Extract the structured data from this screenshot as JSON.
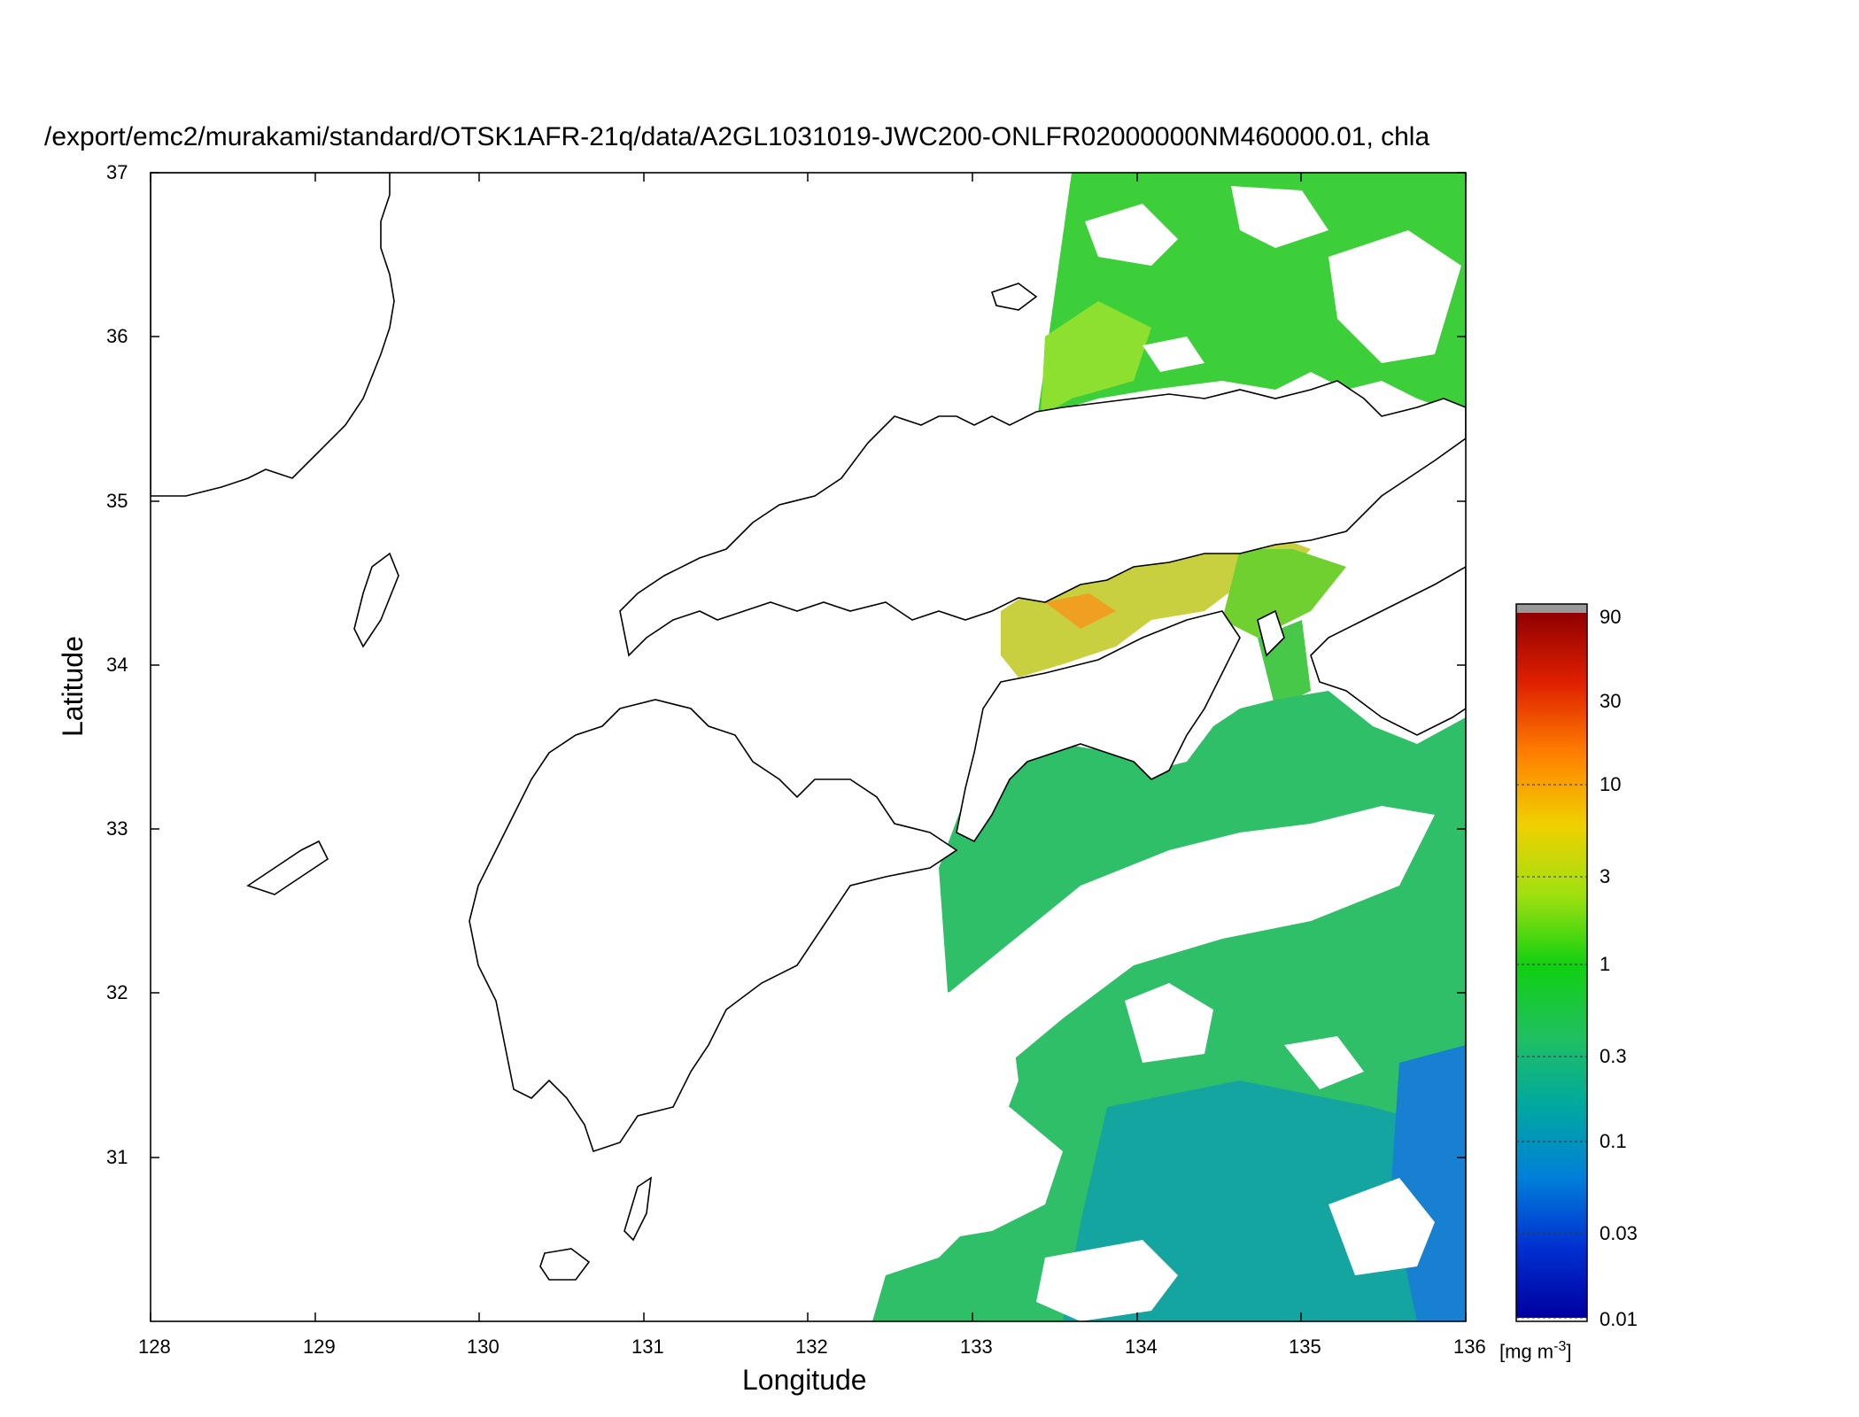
{
  "title": "/export/emc2/murakami/standard/OTSK1AFR-21q/data/A2GL1031019-JWC200-ONLFR02000000NM460000.01, chla",
  "map": {
    "xlabel": "Longitude",
    "ylabel": "Latitude",
    "x_ticks": [
      "128",
      "129",
      "130",
      "131",
      "132",
      "133",
      "134",
      "135",
      "136"
    ],
    "y_ticks": [
      "37",
      "36",
      "35",
      "34",
      "33",
      "32",
      "31"
    ],
    "xlim": [
      128,
      136
    ],
    "ylim": [
      30,
      37
    ],
    "coastline_color": "#000000",
    "missing_color": "#ffffff"
  },
  "colorbar": {
    "ticks": [
      "90",
      "30",
      "10",
      "3",
      "1",
      "0.3",
      "0.1",
      "0.03",
      "0.01"
    ],
    "unit_prefix": "[mg m",
    "unit_exp": "-3",
    "unit_suffix": "]",
    "scale": "log",
    "range": [
      0.01,
      100
    ],
    "colors": [
      "#0000a0",
      "#0030d0",
      "#0080d8",
      "#00a8a0",
      "#20c060",
      "#10d010",
      "#a0e010",
      "#f0d000",
      "#ff8000",
      "#e02000",
      "#900000"
    ],
    "overflow_color": "#999999"
  }
}
